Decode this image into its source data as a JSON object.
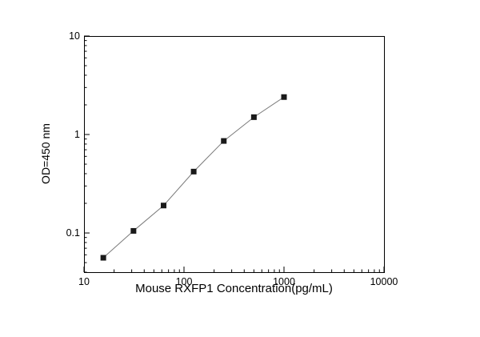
{
  "chart_data": {
    "type": "line",
    "title": "",
    "xlabel": "Mouse RXFP1 Concentration(pg/mL)",
    "ylabel": "OD=450 nm",
    "xscale": "log",
    "yscale": "log",
    "xlim": [
      10,
      10000
    ],
    "ylim": [
      0.04,
      10
    ],
    "x_ticks": [
      10,
      100,
      1000,
      10000
    ],
    "y_ticks": [
      0.1,
      1,
      10
    ],
    "grid": false,
    "legend": false,
    "series": [
      {
        "marker": "square",
        "marker_color": "#1a1a1a",
        "line_color": "#7a7a7a",
        "x": [
          15.6,
          31.25,
          62.5,
          125,
          250,
          500,
          1000
        ],
        "y": [
          0.056,
          0.105,
          0.19,
          0.42,
          0.86,
          1.5,
          2.4
        ]
      }
    ],
    "colors": {
      "axis": "#000000",
      "background": "#ffffff"
    }
  }
}
